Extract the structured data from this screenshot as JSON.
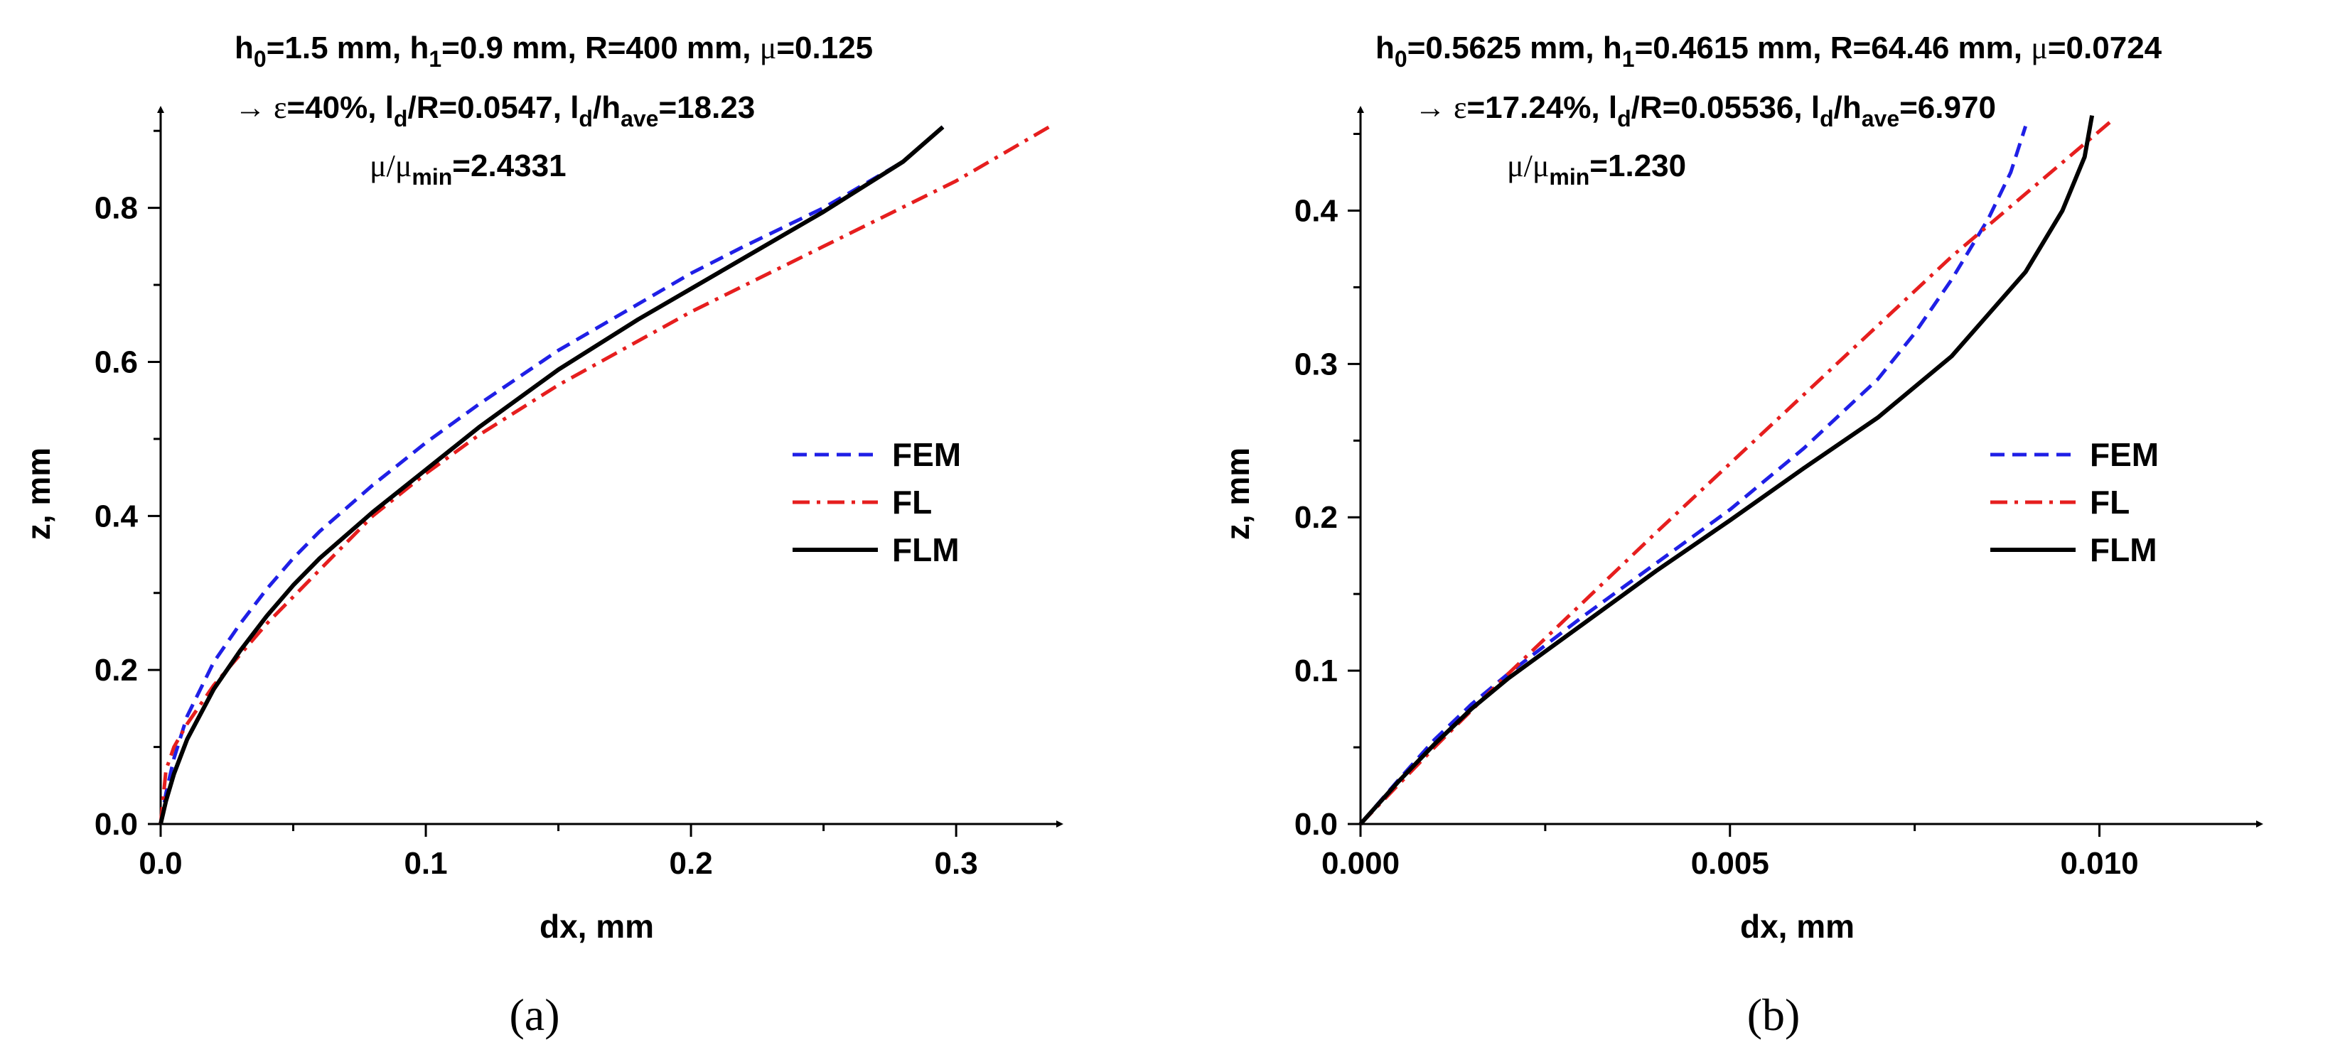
{
  "chart_data": [
    {
      "type": "line",
      "caption": "(a)",
      "xlabel": "dx, mm",
      "ylabel": "z, mm",
      "xlim": [
        0,
        0.345
      ],
      "ylim": [
        0,
        0.95
      ],
      "xticks": [
        "0.0",
        "0.1",
        "0.2",
        "0.3"
      ],
      "xtick_values": [
        0,
        0.1,
        0.2,
        0.3
      ],
      "yticks": [
        "0.0",
        "0.2",
        "0.4",
        "0.6",
        "0.8"
      ],
      "ytick_values": [
        0,
        0.2,
        0.4,
        0.6,
        0.8
      ],
      "annotation": {
        "line1": [
          {
            "t": "h"
          },
          {
            "t": "0",
            "sub": true
          },
          {
            "t": "=1.5 mm, h"
          },
          {
            "t": "1",
            "sub": true
          },
          {
            "t": "=0.9 mm, R=400 mm, "
          },
          {
            "t": "μ",
            "serif": true
          },
          {
            "t": "=0.125"
          }
        ],
        "line2": [
          {
            "t": "→ ",
            "serif": true
          },
          {
            "t": "ε",
            "serif": true
          },
          {
            "t": "=40%, l"
          },
          {
            "t": "d",
            "sub": true
          },
          {
            "t": "/R=0.0547, l"
          },
          {
            "t": "d",
            "sub": true
          },
          {
            "t": "/h"
          },
          {
            "t": "ave",
            "sub": true
          },
          {
            "t": "=18.23"
          }
        ],
        "line3": [
          {
            "t": "μ/μ",
            "serif": true
          },
          {
            "t": "min",
            "sub": true
          },
          {
            "t": "=2.4331"
          }
        ]
      },
      "legend": [
        "FEM",
        "FL",
        "FLM"
      ],
      "series": [
        {
          "name": "FEM",
          "color": "#1f1fe6",
          "style": "dashed",
          "x": [
            0,
            0.002,
            0.005,
            0.01,
            0.02,
            0.03,
            0.04,
            0.05,
            0.06,
            0.08,
            0.1,
            0.12,
            0.15,
            0.18,
            0.2,
            0.22,
            0.25,
            0.28,
            0.295
          ],
          "y": [
            0,
            0.04,
            0.085,
            0.14,
            0.21,
            0.26,
            0.305,
            0.345,
            0.38,
            0.44,
            0.495,
            0.545,
            0.615,
            0.675,
            0.715,
            0.75,
            0.8,
            0.86,
            0.905
          ]
        },
        {
          "name": "FL",
          "color": "#e61e1e",
          "style": "dashdot",
          "x": [
            0,
            0.002,
            0.005,
            0.01,
            0.02,
            0.03,
            0.04,
            0.06,
            0.08,
            0.1,
            0.12,
            0.15,
            0.2,
            0.25,
            0.3,
            0.335
          ],
          "y": [
            0,
            0.07,
            0.1,
            0.13,
            0.18,
            0.22,
            0.26,
            0.33,
            0.4,
            0.455,
            0.505,
            0.57,
            0.665,
            0.75,
            0.835,
            0.905
          ]
        },
        {
          "name": "FLM",
          "color": "#000000",
          "style": "solid",
          "x": [
            0,
            0.002,
            0.005,
            0.01,
            0.02,
            0.03,
            0.04,
            0.05,
            0.06,
            0.08,
            0.1,
            0.12,
            0.15,
            0.18,
            0.2,
            0.22,
            0.25,
            0.28,
            0.295
          ],
          "y": [
            0,
            0.03,
            0.065,
            0.11,
            0.175,
            0.225,
            0.27,
            0.31,
            0.345,
            0.405,
            0.46,
            0.515,
            0.59,
            0.655,
            0.695,
            0.735,
            0.795,
            0.86,
            0.905
          ]
        }
      ]
    },
    {
      "type": "line",
      "caption": "(b)",
      "xlabel": "dx, mm",
      "ylabel": "z, mm",
      "xlim": [
        0,
        0.0124
      ],
      "ylim": [
        0,
        0.4771
      ],
      "xticks": [
        "0.000",
        "0.005",
        "0.010"
      ],
      "xtick_values": [
        0,
        0.005,
        0.01
      ],
      "yticks": [
        "0.0",
        "0.1",
        "0.2",
        "0.3",
        "0.4"
      ],
      "ytick_values": [
        0,
        0.1,
        0.2,
        0.3,
        0.4
      ],
      "annotation": {
        "line1": [
          {
            "t": "h"
          },
          {
            "t": "0",
            "sub": true
          },
          {
            "t": "=0.5625 mm, h"
          },
          {
            "t": "1",
            "sub": true
          },
          {
            "t": "=0.4615 mm, R=64.46 mm, "
          },
          {
            "t": "μ",
            "serif": true
          },
          {
            "t": "=0.0724"
          }
        ],
        "line2": [
          {
            "t": "→ ",
            "serif": true
          },
          {
            "t": "ε",
            "serif": true
          },
          {
            "t": "=17.24%, l"
          },
          {
            "t": "d",
            "sub": true
          },
          {
            "t": "/R=0.05536, l"
          },
          {
            "t": "d",
            "sub": true
          },
          {
            "t": "/h"
          },
          {
            "t": "ave",
            "sub": true
          },
          {
            "t": "=6.970"
          }
        ],
        "line3": [
          {
            "t": "μ/μ",
            "serif": true
          },
          {
            "t": "min",
            "sub": true
          },
          {
            "t": "=1.230"
          }
        ]
      },
      "legend": [
        "FEM",
        "FL",
        "FLM"
      ],
      "series": [
        {
          "name": "FEM",
          "color": "#1f1fe6",
          "style": "dashed",
          "x": [
            0,
            0.0005,
            0.001,
            0.0015,
            0.002,
            0.003,
            0.004,
            0.005,
            0.006,
            0.007,
            0.0075,
            0.008,
            0.0085,
            0.0088,
            0.009
          ],
          "y": [
            0,
            0.028,
            0.055,
            0.078,
            0.098,
            0.135,
            0.17,
            0.205,
            0.245,
            0.29,
            0.32,
            0.355,
            0.395,
            0.425,
            0.455
          ]
        },
        {
          "name": "FL",
          "color": "#e61e1e",
          "style": "dashdot",
          "x": [
            0,
            0.001,
            0.002,
            0.004,
            0.006,
            0.008,
            0.0102
          ],
          "y": [
            0,
            0.05,
            0.098,
            0.19,
            0.28,
            0.37,
            0.46
          ]
        },
        {
          "name": "FLM",
          "color": "#000000",
          "style": "solid",
          "x": [
            0,
            0.0005,
            0.001,
            0.0015,
            0.002,
            0.003,
            0.004,
            0.005,
            0.006,
            0.007,
            0.008,
            0.009,
            0.0095,
            0.0098,
            0.0099
          ],
          "y": [
            0,
            0.027,
            0.052,
            0.075,
            0.095,
            0.13,
            0.165,
            0.198,
            0.232,
            0.265,
            0.305,
            0.36,
            0.4,
            0.435,
            0.462
          ]
        }
      ]
    }
  ]
}
